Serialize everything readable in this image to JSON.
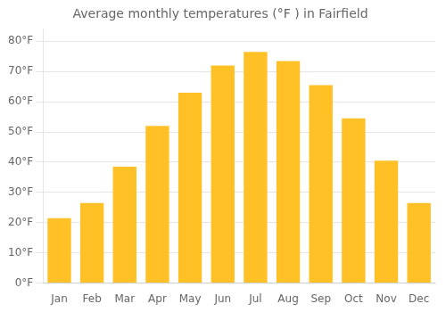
{
  "chart_data": {
    "type": "bar",
    "title": "Average monthly temperatures (°F ) in Fairfield",
    "categories": [
      "Jan",
      "Feb",
      "Mar",
      "Apr",
      "May",
      "Jun",
      "Jul",
      "Aug",
      "Sep",
      "Oct",
      "Nov",
      "Dec"
    ],
    "values": [
      21.5,
      26.5,
      38.5,
      52.0,
      63.0,
      72.0,
      76.5,
      73.5,
      65.5,
      54.5,
      40.5,
      26.5
    ],
    "color": "#FFC125",
    "ylim": [
      0,
      84
    ],
    "yticks": [
      {
        "value": 0,
        "label": "0°F"
      },
      {
        "value": 10,
        "label": "10°F"
      },
      {
        "value": 20,
        "label": "20°F"
      },
      {
        "value": 30,
        "label": "30°F"
      },
      {
        "value": 40,
        "label": "40°F"
      },
      {
        "value": 50,
        "label": "50°F"
      },
      {
        "value": 60,
        "label": "60°F"
      },
      {
        "value": 70,
        "label": "70°F"
      },
      {
        "value": 80,
        "label": "80°F"
      }
    ],
    "grid": true
  }
}
